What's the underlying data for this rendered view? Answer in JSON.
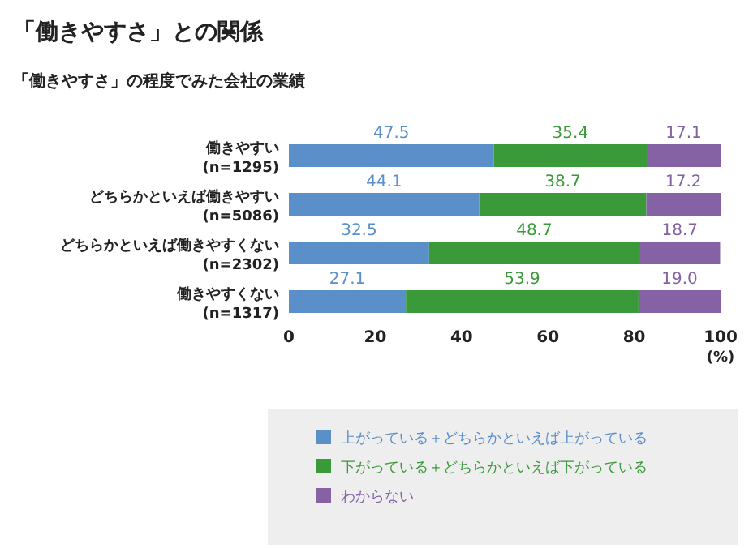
{
  "chart_data": {
    "type": "bar",
    "orientation": "horizontal",
    "stacked": true,
    "title": "「働きやすさ」との関係",
    "subtitle": "「働きやすさ」の程度でみた会社の業績",
    "categories": [
      "働きやすい\n(n=1295)",
      "どちらかといえば働きやすい\n(n=5086)",
      "どちらかといえば働きやすくない\n(n=2302)",
      "働きやすくない\n(n=1317)"
    ],
    "series": [
      {
        "name": "上がっている＋どちらかといえば上がっている",
        "color": "#5b8fc9",
        "values": [
          47.5,
          44.1,
          32.5,
          27.1
        ],
        "value_labels": [
          "47.5",
          "44.1",
          "32.5",
          "27.1"
        ]
      },
      {
        "name": "下がっている＋どちらかといえば下がっている",
        "color": "#3a9a3a",
        "values": [
          35.4,
          38.7,
          48.7,
          53.9
        ],
        "value_labels": [
          "35.4",
          "38.7",
          "48.7",
          "53.9"
        ]
      },
      {
        "name": "わからない",
        "color": "#8462a3",
        "values": [
          17.1,
          17.2,
          18.7,
          19.0
        ],
        "value_labels": [
          "17.1",
          "17.2",
          "18.7",
          "19.0"
        ]
      }
    ],
    "xlim": [
      0,
      100
    ],
    "xticks": [
      0,
      20,
      40,
      60,
      80,
      100
    ],
    "xlabel": "(%)",
    "legend": "bottom"
  }
}
